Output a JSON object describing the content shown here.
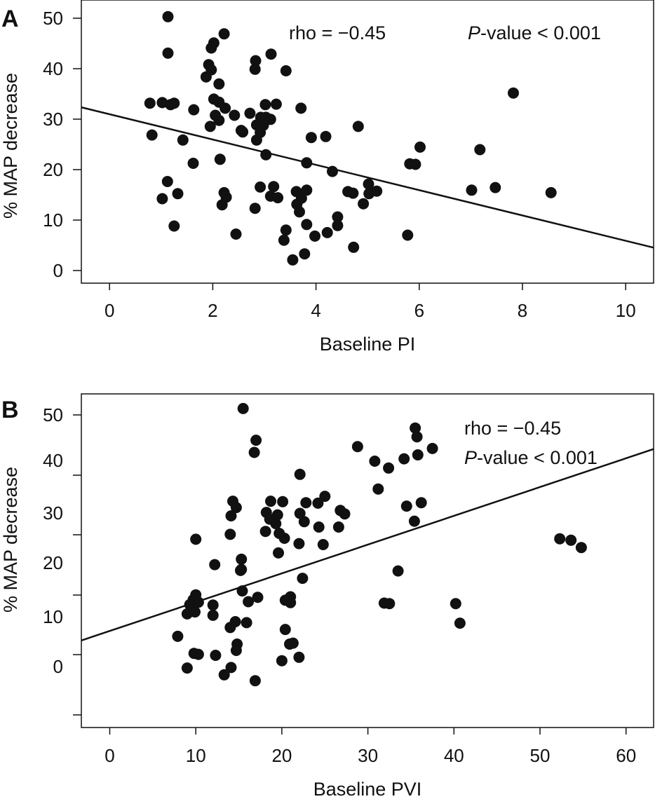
{
  "chart_data": [
    {
      "type": "scatter",
      "panel_label": "A",
      "title": "",
      "xlabel": "Baseline PI",
      "ylabel": "% MAP decrease",
      "xlim": [
        -0.55,
        10.55
      ],
      "ylim": [
        -2.5,
        53.5
      ],
      "xticks": [
        "0",
        "2",
        "4",
        "6",
        "8",
        "10"
      ],
      "yticks": [
        "0",
        "10",
        "20",
        "30",
        "40",
        "50"
      ],
      "grid": false,
      "annotations": [
        {
          "text": "rho = −0.45"
        },
        {
          "text_italic": "P",
          "text": "-value < 0.001"
        }
      ],
      "regression_line": {
        "intercept": 30.9,
        "slope": -2.5
      },
      "points": [
        [
          1.13,
          50.2
        ],
        [
          1.13,
          43.0
        ],
        [
          2.22,
          46.8
        ],
        [
          2.02,
          45.0
        ],
        [
          1.97,
          44.0
        ],
        [
          3.13,
          42.8
        ],
        [
          2.83,
          41.5
        ],
        [
          1.92,
          40.7
        ],
        [
          1.97,
          39.7
        ],
        [
          2.82,
          39.8
        ],
        [
          3.42,
          39.5
        ],
        [
          1.87,
          38.3
        ],
        [
          2.12,
          36.9
        ],
        [
          7.83,
          35.1
        ],
        [
          0.78,
          33.1
        ],
        [
          1.02,
          33.2
        ],
        [
          1.18,
          32.8
        ],
        [
          1.25,
          33.1
        ],
        [
          2.02,
          33.9
        ],
        [
          2.12,
          33.3
        ],
        [
          2.24,
          32.1
        ],
        [
          3.23,
          32.9
        ],
        [
          3.02,
          32.8
        ],
        [
          3.71,
          32.1
        ],
        [
          1.63,
          31.8
        ],
        [
          2.42,
          30.7
        ],
        [
          2.72,
          31.1
        ],
        [
          2.05,
          30.7
        ],
        [
          2.93,
          30.3
        ],
        [
          3.03,
          30.3
        ],
        [
          3.12,
          29.9
        ],
        [
          2.12,
          29.7
        ],
        [
          1.95,
          28.5
        ],
        [
          2.85,
          28.8
        ],
        [
          2.98,
          28.7
        ],
        [
          4.82,
          28.5
        ],
        [
          2.55,
          27.7
        ],
        [
          2.92,
          27.3
        ],
        [
          2.58,
          27.4
        ],
        [
          3.91,
          26.3
        ],
        [
          4.19,
          26.5
        ],
        [
          0.82,
          26.8
        ],
        [
          1.42,
          25.8
        ],
        [
          2.85,
          25.8
        ],
        [
          6.02,
          24.4
        ],
        [
          7.18,
          23.9
        ],
        [
          3.03,
          22.9
        ],
        [
          2.14,
          22.0
        ],
        [
          3.82,
          21.3
        ],
        [
          1.62,
          21.2
        ],
        [
          5.82,
          21.1
        ],
        [
          5.93,
          21.0
        ],
        [
          4.32,
          19.6
        ],
        [
          1.12,
          17.6
        ],
        [
          5.02,
          17.1
        ],
        [
          2.92,
          16.5
        ],
        [
          3.18,
          16.6
        ],
        [
          7.48,
          16.4
        ],
        [
          7.02,
          15.9
        ],
        [
          3.62,
          15.6
        ],
        [
          3.82,
          15.9
        ],
        [
          4.62,
          15.6
        ],
        [
          4.72,
          15.3
        ],
        [
          5.03,
          15.2
        ],
        [
          5.18,
          15.7
        ],
        [
          8.56,
          15.4
        ],
        [
          1.32,
          15.2
        ],
        [
          2.22,
          15.4
        ],
        [
          2.26,
          14.5
        ],
        [
          3.12,
          14.7
        ],
        [
          3.26,
          14.4
        ],
        [
          3.72,
          14.3
        ],
        [
          2.18,
          13.0
        ],
        [
          3.63,
          13.1
        ],
        [
          4.92,
          13.2
        ],
        [
          2.82,
          12.3
        ],
        [
          3.68,
          11.6
        ],
        [
          4.42,
          10.6
        ],
        [
          1.02,
          14.2
        ],
        [
          1.25,
          8.8
        ],
        [
          3.82,
          9.1
        ],
        [
          4.42,
          8.9
        ],
        [
          3.42,
          8.0
        ],
        [
          4.22,
          7.5
        ],
        [
          2.45,
          7.2
        ],
        [
          3.98,
          6.8
        ],
        [
          5.78,
          7.0
        ],
        [
          3.38,
          6.0
        ],
        [
          4.73,
          4.6
        ],
        [
          3.78,
          3.3
        ],
        [
          3.55,
          2.1
        ]
      ]
    },
    {
      "type": "scatter",
      "panel_label": "B",
      "title": "",
      "xlabel": "Baseline PVI",
      "ylabel": "% MAP decrease",
      "xlim": [
        -3.3,
        63.2
      ],
      "ylim": [
        -14.9,
        53.5
      ],
      "xticks": [
        "0",
        "10",
        "20",
        "30",
        "40",
        "50",
        "60"
      ],
      "yticks": [
        "0",
        "10",
        "20",
        "30",
        "40",
        "50"
      ],
      "grid": false,
      "annotations": [
        {
          "text": "rho = −0.45"
        },
        {
          "text_italic": "P",
          "text": "-value < 0.001"
        }
      ],
      "regression_line": {
        "intercept": 4.9,
        "slope": 0.59
      },
      "points": [
        [
          15.5,
          50.5
        ],
        [
          17.0,
          44.0
        ],
        [
          35.5,
          46.5
        ],
        [
          35.7,
          44.7
        ],
        [
          28.8,
          42.7
        ],
        [
          37.5,
          42.3
        ],
        [
          16.8,
          41.5
        ],
        [
          35.8,
          41.0
        ],
        [
          30.8,
          39.7
        ],
        [
          34.2,
          40.2
        ],
        [
          32.4,
          38.3
        ],
        [
          22.1,
          37.0
        ],
        [
          31.2,
          34.0
        ],
        [
          25.0,
          32.5
        ],
        [
          14.3,
          31.5
        ],
        [
          18.7,
          31.5
        ],
        [
          20.1,
          31.4
        ],
        [
          22.8,
          31.2
        ],
        [
          24.2,
          31.1
        ],
        [
          36.2,
          31.2
        ],
        [
          14.7,
          30.2
        ],
        [
          34.5,
          30.5
        ],
        [
          18.2,
          29.2
        ],
        [
          22.1,
          29.0
        ],
        [
          26.8,
          29.6
        ],
        [
          27.3,
          28.9
        ],
        [
          14.1,
          28.5
        ],
        [
          19.5,
          28.7
        ],
        [
          18.6,
          27.8
        ],
        [
          19.3,
          26.9
        ],
        [
          22.6,
          27.3
        ],
        [
          24.3,
          26.2
        ],
        [
          26.6,
          26.2
        ],
        [
          35.4,
          27.4
        ],
        [
          18.1,
          25.3
        ],
        [
          14.0,
          24.7
        ],
        [
          19.7,
          24.9
        ],
        [
          20.3,
          23.9
        ],
        [
          10.0,
          23.7
        ],
        [
          22.0,
          22.8
        ],
        [
          24.8,
          22.6
        ],
        [
          52.3,
          23.8
        ],
        [
          53.6,
          23.5
        ],
        [
          54.8,
          22.0
        ],
        [
          19.6,
          20.9
        ],
        [
          15.3,
          19.6
        ],
        [
          12.2,
          18.5
        ],
        [
          15.3,
          17.5
        ],
        [
          15.2,
          17.3
        ],
        [
          33.5,
          17.2
        ],
        [
          22.4,
          15.7
        ],
        [
          15.4,
          13.1
        ],
        [
          10.0,
          12.3
        ],
        [
          9.7,
          11.3
        ],
        [
          17.2,
          11.8
        ],
        [
          21.0,
          11.9
        ],
        [
          10.3,
          10.8
        ],
        [
          9.6,
          10.0
        ],
        [
          9.3,
          10.3
        ],
        [
          12.0,
          10.2
        ],
        [
          16.1,
          10.9
        ],
        [
          20.4,
          11.2
        ],
        [
          21.0,
          10.7
        ],
        [
          31.9,
          10.6
        ],
        [
          32.5,
          10.5
        ],
        [
          40.2,
          10.5
        ],
        [
          9.9,
          8.8
        ],
        [
          9.0,
          8.4
        ],
        [
          12.0,
          8.1
        ],
        [
          14.6,
          6.8
        ],
        [
          15.9,
          6.6
        ],
        [
          40.7,
          6.5
        ],
        [
          14.0,
          5.6
        ],
        [
          20.4,
          5.2
        ],
        [
          7.9,
          3.8
        ],
        [
          14.8,
          2.2
        ],
        [
          20.9,
          2.2
        ],
        [
          21.3,
          2.4
        ],
        [
          9.8,
          0.3
        ],
        [
          10.3,
          0.1
        ],
        [
          12.3,
          -0.1
        ],
        [
          14.7,
          0.9
        ],
        [
          20.0,
          -1.2
        ],
        [
          22.0,
          -0.5
        ],
        [
          9.0,
          -2.7
        ],
        [
          14.1,
          -2.6
        ],
        [
          13.3,
          -4.1
        ],
        [
          16.9,
          -5.3
        ]
      ]
    }
  ]
}
